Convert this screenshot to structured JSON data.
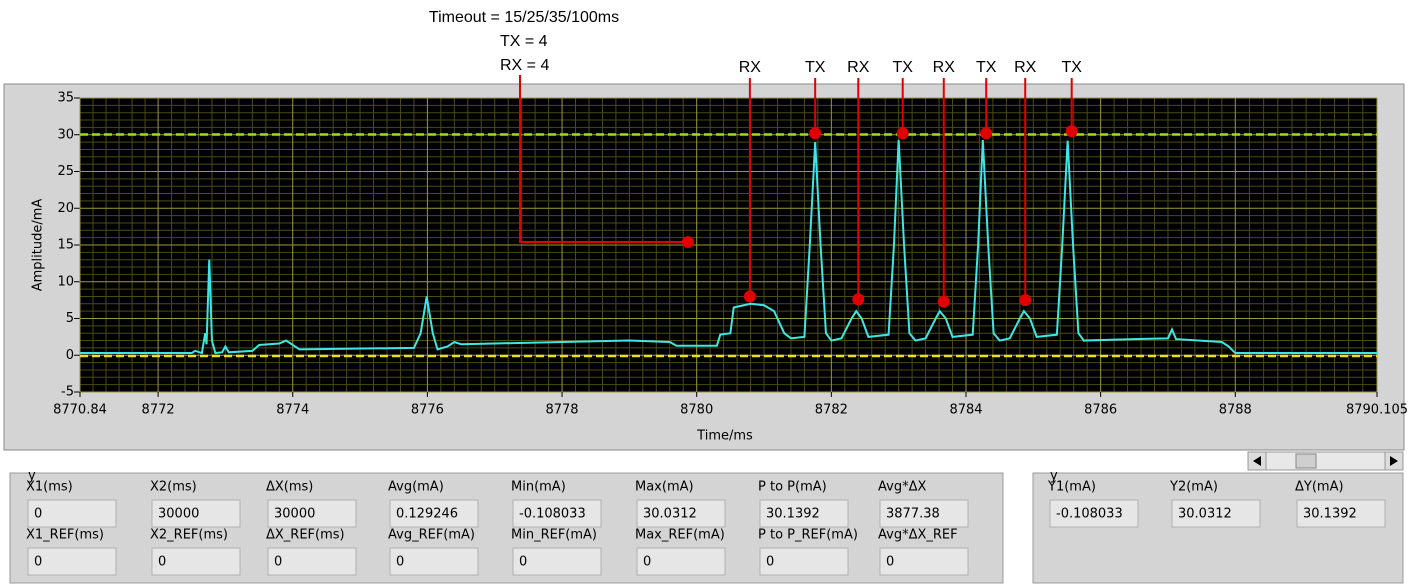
{
  "chart_data": {
    "type": "line",
    "xlabel": "Time/ms",
    "ylabel": "Amplitude/mA",
    "xlim": [
      8770.84,
      8790.105
    ],
    "ylim": [
      -5,
      35
    ],
    "xticks": [
      8770.84,
      8772,
      8774,
      8776,
      8778,
      8780,
      8782,
      8784,
      8786,
      8788,
      8790.105
    ],
    "yticks": [
      -5,
      0,
      5,
      10,
      15,
      20,
      25,
      30,
      35
    ],
    "grid": true,
    "series": [
      {
        "color": "#3ee6e6",
        "x": [
          8770.84,
          8772.5,
          8772.55,
          8772.65,
          8772.7,
          8772.72,
          8772.76,
          8772.8,
          8772.85,
          8772.95,
          8773.0,
          8773.05,
          8773.4,
          8773.5,
          8773.8,
          8773.9,
          8774.0,
          8774.1,
          8775.8,
          8775.9,
          8775.99,
          8776.08,
          8776.15,
          8776.3,
          8776.4,
          8776.5,
          8777.0,
          8778.0,
          8779.0,
          8779.6,
          8779.7,
          8780.3,
          8780.35,
          8780.5,
          8780.55,
          8780.8,
          8781.0,
          8781.15,
          8781.3,
          8781.4,
          8781.6,
          8781.68,
          8781.76,
          8781.84,
          8781.92,
          8782.0,
          8782.15,
          8782.3,
          8782.37,
          8782.45,
          8782.55,
          8782.85,
          8782.93,
          8783.0,
          8783.08,
          8783.16,
          8783.25,
          8783.4,
          8783.55,
          8783.61,
          8783.7,
          8783.8,
          8784.1,
          8784.18,
          8784.25,
          8784.33,
          8784.41,
          8784.5,
          8784.65,
          8784.8,
          8784.86,
          8784.95,
          8785.05,
          8785.35,
          8785.43,
          8785.51,
          8785.59,
          8785.67,
          8785.75,
          8786.5,
          8787.0,
          8787.06,
          8787.12,
          8787.8,
          8787.9,
          8788.0,
          8790.105
        ],
        "values": [
          0.3,
          0.3,
          0.6,
          0.3,
          3,
          1.5,
          13,
          2,
          0.3,
          0.4,
          1.2,
          0.4,
          0.6,
          1.4,
          1.6,
          2.0,
          1.4,
          0.8,
          1.0,
          3,
          8,
          3,
          0.8,
          1.2,
          1.8,
          1.5,
          1.6,
          1.8,
          2.0,
          1.8,
          1.3,
          1.3,
          2.8,
          3,
          6.5,
          7,
          6.8,
          6,
          3,
          2.3,
          2.5,
          15,
          29,
          15,
          3,
          2,
          2.3,
          5,
          6,
          5,
          2.5,
          2.8,
          15,
          29.3,
          15,
          3,
          2,
          2.3,
          5,
          6,
          5,
          2.5,
          2.8,
          15,
          29.3,
          15,
          3,
          2,
          2.3,
          5,
          6,
          5,
          2.5,
          2.8,
          15,
          29.2,
          15,
          3,
          2,
          2.2,
          2.3,
          3.5,
          2.2,
          1.8,
          1.2,
          0.3,
          0.3
        ]
      }
    ],
    "annotations": [
      {
        "label": "RX",
        "x": 8780.79,
        "y": 8.0
      },
      {
        "label": "TX",
        "x": 8781.76,
        "y": 30.2
      },
      {
        "label": "RX",
        "x": 8782.4,
        "y": 7.6
      },
      {
        "label": "TX",
        "x": 8783.06,
        "y": 30.2
      },
      {
        "label": "RX",
        "x": 8783.67,
        "y": 7.3
      },
      {
        "label": "TX",
        "x": 8784.3,
        "y": 30.2
      },
      {
        "label": "RX",
        "x": 8784.88,
        "y": 7.5
      },
      {
        "label": "TX",
        "x": 8785.57,
        "y": 30.5
      }
    ],
    "note": {
      "lines": [
        "Timeout = 15/25/35/100ms",
        "TX = 4",
        "RX = 4"
      ],
      "x": 8779.87,
      "y": 15.4
    }
  },
  "measurements": {
    "group_label": "y",
    "columns": [
      {
        "label": "X1(ms)",
        "value": 0
      },
      {
        "label": "X2(ms)",
        "value": 30000
      },
      {
        "label": "ΔX(ms)",
        "value": 30000
      },
      {
        "label": "Avg(mA)",
        "value": 0.129246
      },
      {
        "label": "Min(mA)",
        "value": -0.108033
      },
      {
        "label": "Max(mA)",
        "value": 30.0312
      },
      {
        "label": "P to P(mA)",
        "value": 30.1392
      },
      {
        "label": "Avg*ΔX",
        "value": 3877.38
      }
    ],
    "ref_columns": [
      {
        "label": "X1_REF(ms)",
        "value": 0
      },
      {
        "label": "X2_REF(ms)",
        "value": 0
      },
      {
        "label": "ΔX_REF(ms)",
        "value": 0
      },
      {
        "label": "Avg_REF(mA)",
        "value": 0
      },
      {
        "label": "Min_REF(mA)",
        "value": 0
      },
      {
        "label": "Max_REF(mA)",
        "value": 0
      },
      {
        "label": "P to P_REF(mA)",
        "value": 0
      },
      {
        "label": "Avg*ΔX_REF",
        "value": 0
      }
    ]
  },
  "y_measurements": {
    "group_label": "y",
    "columns": [
      {
        "label": "Y1(mA)",
        "value": -0.108033
      },
      {
        "label": "Y2(mA)",
        "value": 30.0312
      },
      {
        "label": "ΔY(mA)",
        "value": 30.1392
      }
    ]
  }
}
